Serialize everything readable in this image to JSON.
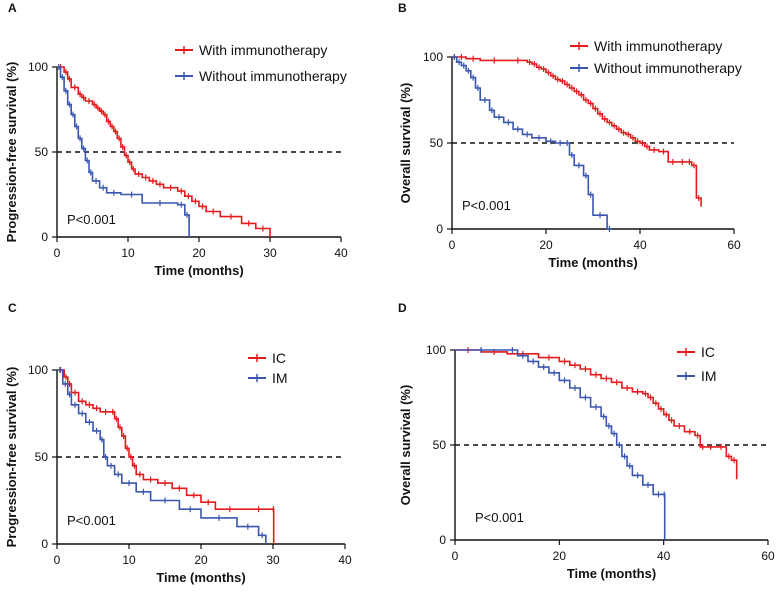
{
  "colors": {
    "red": "#e41a1c",
    "blue": "#3a56b0",
    "axis": "#111111"
  },
  "chart_data": [
    {
      "panel": "A",
      "type": "line",
      "title": "",
      "xlabel": "Time (months)",
      "ylabel": "Progression-free survival (%)",
      "xlim": [
        0,
        40
      ],
      "ylim": [
        0,
        100
      ],
      "xticks": [
        "0",
        "10",
        "20",
        "30",
        "40"
      ],
      "yticks": [
        "0",
        "50",
        "100"
      ],
      "reference_line_y": 50,
      "annotation": "P<0.001",
      "legend_position": "top-right",
      "series": [
        {
          "name": "With immunotherapy",
          "color": "#e41a1c",
          "x": [
            0,
            1,
            1.5,
            2,
            3,
            3.5,
            4,
            5,
            5.5,
            6,
            6.5,
            7,
            7.5,
            8,
            8.5,
            9,
            9.5,
            10,
            10.5,
            11,
            12,
            13,
            14,
            15,
            17,
            18,
            19,
            20,
            21,
            23,
            26,
            28,
            30
          ],
          "y": [
            100,
            97,
            93,
            88,
            84,
            82,
            80,
            78,
            76,
            74,
            72,
            68,
            65,
            62,
            58,
            53,
            48,
            44,
            40,
            37,
            35,
            33,
            31,
            29,
            27,
            24,
            21,
            18,
            15,
            12,
            8,
            5,
            0
          ]
        },
        {
          "name": "Without immunotherapy",
          "color": "#3a56b0",
          "x": [
            0,
            0.5,
            1,
            1.5,
            2,
            2.5,
            3,
            3.5,
            4,
            4.5,
            5,
            6,
            7,
            9,
            12,
            17,
            18,
            18.6
          ],
          "y": [
            100,
            94,
            86,
            78,
            72,
            65,
            58,
            52,
            45,
            38,
            33,
            29,
            26,
            25,
            20,
            19,
            13,
            0
          ]
        }
      ]
    },
    {
      "panel": "B",
      "type": "line",
      "title": "",
      "xlabel": "Time (months)",
      "ylabel": "Overall survival (%)",
      "xlim": [
        0,
        60
      ],
      "ylim": [
        0,
        100
      ],
      "xticks": [
        "0",
        "20",
        "40",
        "60"
      ],
      "yticks": [
        "0",
        "50",
        "100"
      ],
      "reference_line_y": 50,
      "annotation": "P<0.001",
      "legend_position": "top-right",
      "series": [
        {
          "name": "With immunotherapy",
          "color": "#e41a1c",
          "x": [
            0,
            1,
            3,
            6,
            12,
            16,
            17,
            18,
            19,
            20,
            21,
            22,
            23,
            24,
            25,
            26,
            27,
            28,
            29,
            30,
            31,
            32,
            33,
            34,
            35,
            36,
            37,
            38,
            39,
            40,
            41,
            42,
            44,
            46,
            48,
            50,
            51,
            52,
            53
          ],
          "y": [
            100,
            100,
            99,
            98,
            98,
            97,
            96,
            94,
            93,
            91,
            89,
            87,
            86,
            84,
            82,
            80,
            78,
            75,
            73,
            70,
            67,
            64,
            62,
            60,
            58,
            56,
            55,
            53,
            51,
            50,
            48,
            46,
            45,
            39,
            39,
            39,
            37,
            18,
            13
          ]
        },
        {
          "name": "Without immunotherapy",
          "color": "#3a56b0",
          "x": [
            0,
            1,
            2,
            3,
            4,
            5,
            6,
            8,
            9,
            11,
            13,
            15,
            17,
            20,
            22,
            24,
            25,
            26,
            28,
            29,
            30,
            33,
            34
          ],
          "y": [
            100,
            97,
            95,
            92,
            88,
            82,
            75,
            69,
            65,
            62,
            58,
            55,
            53,
            51,
            50,
            50,
            43,
            37,
            31,
            20,
            8,
            0,
            0
          ]
        }
      ]
    },
    {
      "panel": "C",
      "type": "line",
      "title": "",
      "xlabel": "Time (months)",
      "ylabel": "Progression-free survival (%)",
      "xlim": [
        0,
        40
      ],
      "ylim": [
        0,
        100
      ],
      "xticks": [
        "0",
        "10",
        "20",
        "30",
        "40"
      ],
      "yticks": [
        "0",
        "50",
        "100"
      ],
      "reference_line_y": 50,
      "annotation": "P<0.001",
      "legend_position": "top-right",
      "series": [
        {
          "name": "IC",
          "color": "#e41a1c",
          "x": [
            0,
            1,
            1.5,
            2,
            3,
            4,
            5,
            6,
            7.5,
            8,
            8.5,
            9,
            9.5,
            10,
            10.5,
            11,
            12,
            14,
            16,
            18,
            20,
            22,
            26,
            30,
            30.1
          ],
          "y": [
            100,
            96,
            92,
            87,
            82,
            80,
            78,
            76,
            76,
            72,
            67,
            62,
            55,
            50,
            45,
            40,
            37,
            35,
            32,
            28,
            24,
            20,
            20,
            20,
            0
          ]
        },
        {
          "name": "IM",
          "color": "#3a56b0",
          "x": [
            0,
            0.8,
            1.5,
            2,
            3,
            4,
            5,
            6,
            6.5,
            7,
            8,
            9,
            11,
            13,
            17,
            20,
            25,
            28,
            29
          ],
          "y": [
            100,
            92,
            86,
            80,
            75,
            70,
            65,
            60,
            50,
            45,
            40,
            35,
            30,
            25,
            20,
            15,
            10,
            5,
            0
          ]
        }
      ]
    },
    {
      "panel": "D",
      "type": "line",
      "title": "",
      "xlabel": "Time (months)",
      "ylabel": "Overall survival (%)",
      "xlim": [
        0,
        60
      ],
      "ylim": [
        0,
        100
      ],
      "xticks": [
        "0",
        "20",
        "40",
        "60"
      ],
      "yticks": [
        "0",
        "50",
        "100"
      ],
      "reference_line_y": 50,
      "annotation": "P<0.001",
      "legend_position": "top-right",
      "series": [
        {
          "name": "IC",
          "color": "#e41a1c",
          "x": [
            0,
            5,
            10,
            16,
            20,
            22,
            24,
            26,
            28,
            30,
            32,
            34,
            36,
            37,
            38,
            39,
            40,
            41,
            42,
            44,
            46,
            47,
            48,
            50,
            52,
            53,
            54
          ],
          "y": [
            100,
            99,
            98,
            96,
            94,
            92,
            90,
            87,
            85,
            83,
            80,
            78,
            77,
            75,
            72,
            69,
            66,
            63,
            60,
            57,
            55,
            49,
            49,
            49,
            44,
            42,
            32
          ]
        },
        {
          "name": "IM",
          "color": "#3a56b0",
          "x": [
            0,
            10,
            12,
            14,
            16,
            18,
            20,
            22,
            24,
            26,
            28,
            29,
            30,
            31,
            32,
            33,
            34,
            36,
            38,
            40,
            40.2
          ],
          "y": [
            100,
            100,
            97,
            94,
            91,
            88,
            84,
            80,
            75,
            70,
            65,
            60,
            56,
            50,
            44,
            39,
            34,
            29,
            24,
            24,
            0
          ]
        }
      ]
    }
  ]
}
